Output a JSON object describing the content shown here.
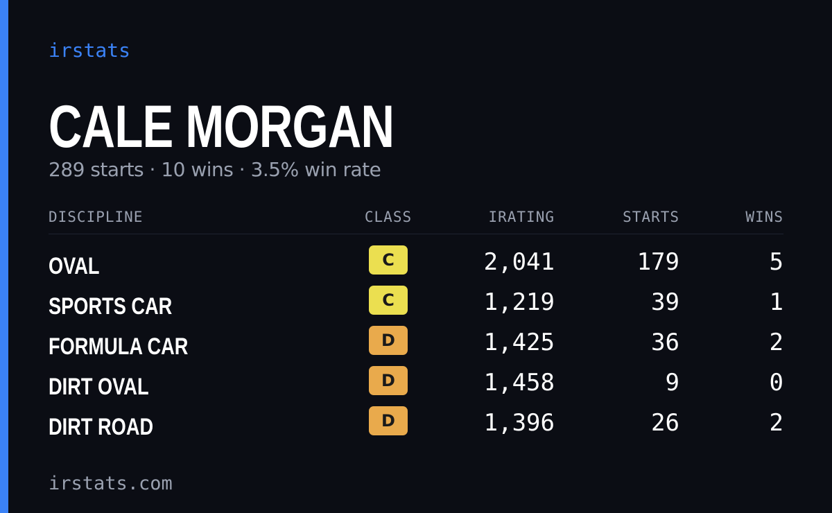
{
  "brand": "irstats",
  "driver": {
    "name": "CALE MORGAN",
    "summary": "289 starts · 10 wins · 3.5% win rate"
  },
  "table": {
    "headers": [
      "DISCIPLINE",
      "CLASS",
      "IRATING",
      "STARTS",
      "WINS"
    ],
    "rows": [
      [
        "OVAL",
        "C",
        "2,041",
        "179",
        "5"
      ],
      [
        "SPORTS CAR",
        "C",
        "1,219",
        "39",
        "1"
      ],
      [
        "FORMULA CAR",
        "D",
        "1,425",
        "36",
        "2"
      ],
      [
        "DIRT OVAL",
        "D",
        "1,458",
        "9",
        "0"
      ],
      [
        "DIRT ROAD",
        "D",
        "1,396",
        "26",
        "2"
      ]
    ],
    "class_colors": {
      "C": "#ebdf50",
      "D": "#e9aa4c"
    }
  },
  "footer": "irstats.com"
}
